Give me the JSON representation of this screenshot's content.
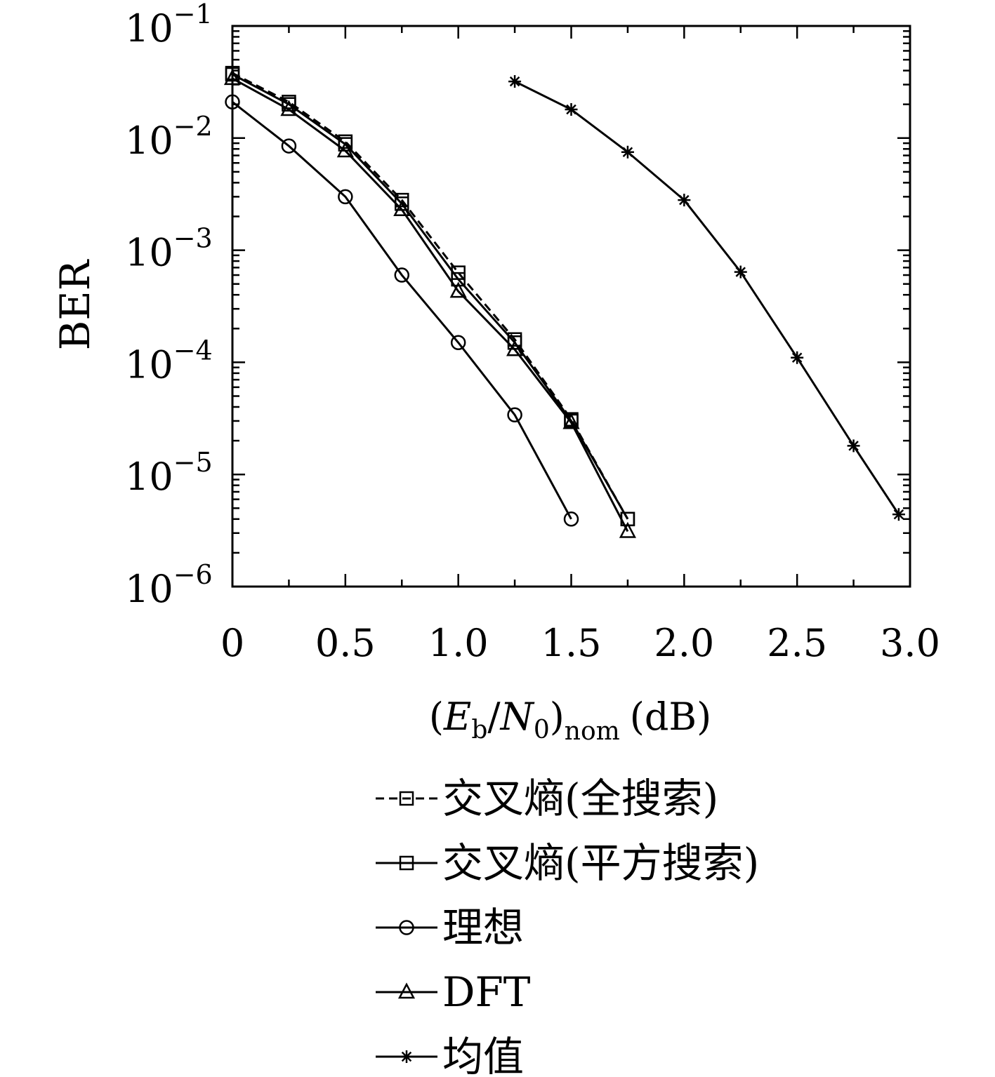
{
  "chart_data": {
    "type": "line",
    "y_scale": "log",
    "xlim": [
      0,
      3.0
    ],
    "ylim": [
      1e-06,
      0.1
    ],
    "x_ticks": [
      0,
      0.5,
      1.0,
      1.5,
      2.0,
      2.5,
      3.0
    ],
    "x_tick_labels": [
      "0",
      "0.5",
      "1.0",
      "1.5",
      "2.0",
      "2.5",
      "3.0"
    ],
    "y_ticks": [
      {
        "value": 0.1,
        "base": "10",
        "exp": "−1"
      },
      {
        "value": 0.01,
        "base": "10",
        "exp": "−2"
      },
      {
        "value": 0.001,
        "base": "10",
        "exp": "−3"
      },
      {
        "value": 0.0001,
        "base": "10",
        "exp": "−4"
      },
      {
        "value": 1e-05,
        "base": "10",
        "exp": "−5"
      },
      {
        "value": 1e-06,
        "base": "10",
        "exp": "−6"
      }
    ],
    "ylabel": "BER",
    "xlabel": {
      "open": "(",
      "E": "E",
      "E_sub": "b",
      "slash": "/",
      "N": "N",
      "N_sub": "0",
      "close": ")",
      "outer_sub": "nom",
      "unit": "(dB)"
    },
    "grid": false,
    "legend_position": "below",
    "series": [
      {
        "name": "交叉熵(全搜索)",
        "marker": "square",
        "linestyle": "dashed",
        "x": [
          0,
          0.25,
          0.5,
          0.75,
          1.0,
          1.25,
          1.5,
          1.75
        ],
        "y": [
          0.038,
          0.021,
          0.0093,
          0.0028,
          0.00063,
          0.00016,
          3.1e-05,
          4e-06
        ]
      },
      {
        "name": "交叉熵(平方搜索)",
        "marker": "square",
        "linestyle": "solid",
        "x": [
          0,
          0.25,
          0.5,
          0.75,
          1.0,
          1.25,
          1.5,
          1.75
        ],
        "y": [
          0.037,
          0.02,
          0.0088,
          0.0026,
          0.00055,
          0.00015,
          3e-05,
          4e-06
        ]
      },
      {
        "name": "理想",
        "marker": "circle",
        "linestyle": "solid",
        "x": [
          0,
          0.25,
          0.5,
          0.75,
          1.0,
          1.25,
          1.5
        ],
        "y": [
          0.021,
          0.0085,
          0.003,
          0.0006,
          0.00015,
          3.4e-05,
          4e-06
        ]
      },
      {
        "name": "DFT",
        "marker": "triangle",
        "linestyle": "solid",
        "x": [
          0,
          0.25,
          0.5,
          0.75,
          1.0,
          1.25,
          1.5,
          1.75
        ],
        "y": [
          0.034,
          0.018,
          0.0077,
          0.0023,
          0.00043,
          0.00013,
          2.9e-05,
          3.1e-06
        ]
      },
      {
        "name": "均值",
        "marker": "asterisk",
        "linestyle": "solid",
        "x": [
          1.25,
          1.5,
          1.75,
          2.0,
          2.25,
          2.5,
          2.75,
          2.95
        ],
        "y": [
          0.032,
          0.018,
          0.0075,
          0.0028,
          0.00064,
          0.00011,
          1.8e-05,
          4.4e-06
        ]
      }
    ]
  }
}
